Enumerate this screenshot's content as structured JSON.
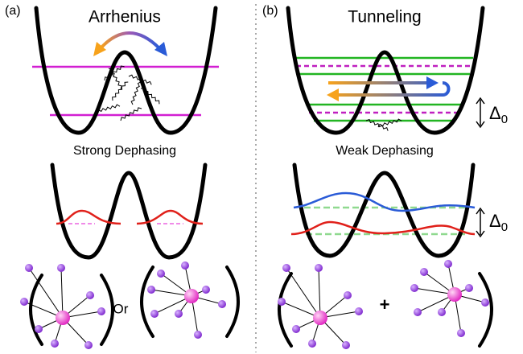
{
  "panel_a": {
    "label": "(a)",
    "title": "Arrhenius",
    "caption": "Strong Dephasing",
    "joiner": "Or"
  },
  "panel_b": {
    "label": "(b)",
    "title": "Tunneling",
    "caption": "Weak Dephasing",
    "joiner": "+",
    "splitting_top": {
      "symbol": "Δ",
      "subscript": "0"
    },
    "splitting_mid": {
      "symbol": "Δ",
      "subscript": "0"
    }
  }
}
